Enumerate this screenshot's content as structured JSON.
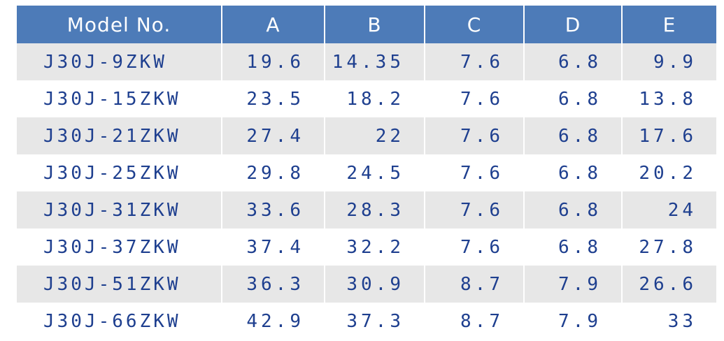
{
  "table": {
    "header": [
      "Model No.",
      "A",
      "B",
      "C",
      "D",
      "E"
    ],
    "rows": [
      [
        "J30J-9ZKW",
        "19.6",
        "14.35",
        "7.6",
        "6.8",
        "9.9"
      ],
      [
        "J30J-15ZKW",
        "23.5",
        "18.2",
        "7.6",
        "6.8",
        "13.8"
      ],
      [
        "J30J-21ZKW",
        "27.4",
        "22",
        "7.6",
        "6.8",
        "17.6"
      ],
      [
        "J30J-25ZKW",
        "29.8",
        "24.5",
        "7.6",
        "6.8",
        "20.2"
      ],
      [
        "J30J-31ZKW",
        "33.6",
        "28.3",
        "7.6",
        "6.8",
        "24"
      ],
      [
        "J30J-37ZKW",
        "37.4",
        "32.2",
        "7.6",
        "6.8",
        "27.8"
      ],
      [
        "J30J-51ZKW",
        "36.3",
        "30.9",
        "8.7",
        "7.9",
        "26.6"
      ],
      [
        "J30J-66ZKW",
        "42.9",
        "37.3",
        "8.7",
        "7.9",
        "33"
      ]
    ]
  }
}
